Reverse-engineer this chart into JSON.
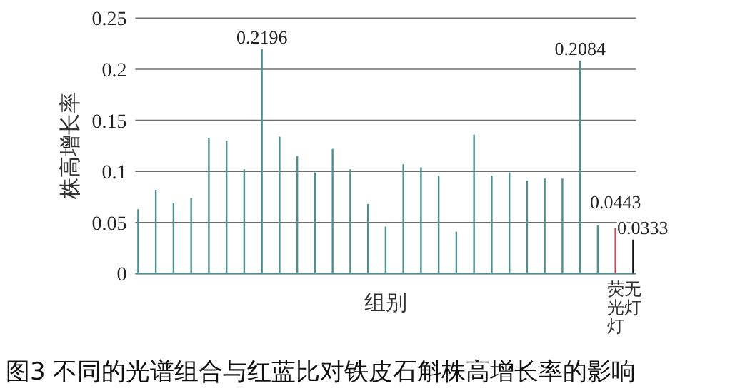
{
  "chart_data": {
    "type": "bar",
    "title": "图3 不同的光谱组合与红蓝比对铁皮石斛株高增长率的影响",
    "xlabel": "组别",
    "ylabel": "株高增长率",
    "categories": [
      null,
      null,
      null,
      null,
      null,
      null,
      null,
      null,
      null,
      null,
      null,
      null,
      null,
      null,
      null,
      null,
      null,
      null,
      null,
      null,
      null,
      null,
      null,
      null,
      null,
      null,
      null,
      "荧光灯",
      "无灯"
    ],
    "values": [
      0.063,
      0.082,
      0.069,
      0.074,
      0.133,
      0.13,
      0.102,
      0.2196,
      0.134,
      0.115,
      0.099,
      0.122,
      0.102,
      0.068,
      0.046,
      0.107,
      0.104,
      0.096,
      0.041,
      0.136,
      0.096,
      0.099,
      0.091,
      0.093,
      0.093,
      0.2084,
      0.047,
      0.0443,
      0.0333
    ],
    "value_labels": [
      null,
      null,
      null,
      null,
      null,
      null,
      null,
      "0.2196",
      null,
      null,
      null,
      null,
      null,
      null,
      null,
      null,
      null,
      null,
      null,
      null,
      null,
      null,
      null,
      null,
      null,
      "0.2084",
      null,
      "0.0443",
      "0.0333"
    ],
    "colors": [
      "#4f8f8f",
      "#4f8f8f",
      "#4f8f8f",
      "#4f8f8f",
      "#4f8f8f",
      "#4f8f8f",
      "#4f8f8f",
      "#4f8f8f",
      "#4f8f8f",
      "#4f8f8f",
      "#4f8f8f",
      "#4f8f8f",
      "#4f8f8f",
      "#4f8f8f",
      "#4f8f8f",
      "#4f8f8f",
      "#4f8f8f",
      "#4f8f8f",
      "#4f8f8f",
      "#4f8f8f",
      "#4f8f8f",
      "#4f8f8f",
      "#4f8f8f",
      "#4f8f8f",
      "#4f8f8f",
      "#4f8f8f",
      "#4f8f8f",
      "#c04a5a",
      "#111111"
    ],
    "ylim": [
      0,
      0.25
    ],
    "yticks": [
      0,
      0.05,
      0.1,
      0.15,
      0.2,
      0.25
    ],
    "grid": "y"
  }
}
